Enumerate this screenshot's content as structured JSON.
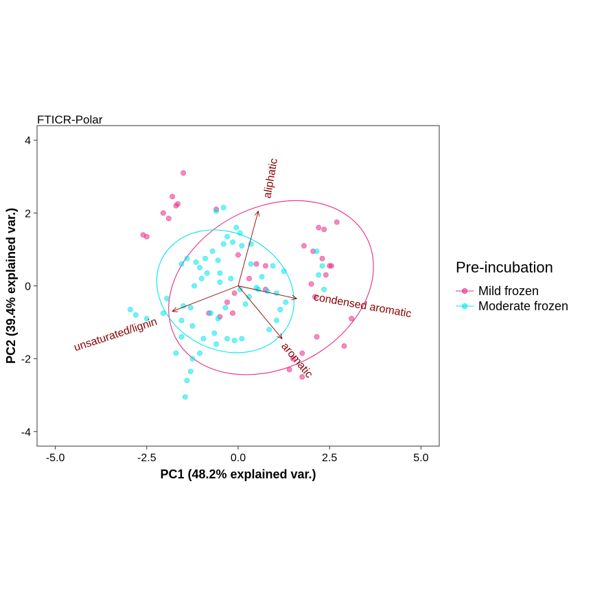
{
  "chart_data": {
    "type": "scatter",
    "title": "FTICR-Polar",
    "xlabel": "PC1 (48.2% explained var.)",
    "ylabel": "PC2 (39.4% explained var.)",
    "xlim": [
      -5.5,
      5.5
    ],
    "ylim": [
      -4.4,
      4.4
    ],
    "xticks": [
      -5.0,
      -2.5,
      0.0,
      2.5,
      5.0
    ],
    "xtick_labels": [
      "-5.0",
      "-2.5",
      "0.0",
      "2.5",
      "5.0"
    ],
    "yticks": [
      -4,
      -2,
      0,
      2,
      4
    ],
    "ytick_labels": [
      "-4",
      "-2",
      "0",
      "2",
      "4"
    ],
    "grid": false,
    "legend": {
      "title": "Pre-incubation",
      "position": "right"
    },
    "series": [
      {
        "name": "Mild frozen",
        "color": "#e7298a",
        "points": [
          [
            -1.5,
            3.1
          ],
          [
            -1.8,
            2.45
          ],
          [
            -1.7,
            2.2
          ],
          [
            -1.65,
            2.25
          ],
          [
            -2.05,
            2.0
          ],
          [
            -1.9,
            1.85
          ],
          [
            -2.6,
            1.4
          ],
          [
            -2.5,
            1.35
          ],
          [
            -0.6,
            2.1
          ],
          [
            2.2,
            1.6
          ],
          [
            2.35,
            1.55
          ],
          [
            2.7,
            1.75
          ],
          [
            1.8,
            1.1
          ],
          [
            2.05,
            0.95
          ],
          [
            2.3,
            0.75
          ],
          [
            2.5,
            0.55
          ],
          [
            2.55,
            0.55
          ],
          [
            2.4,
            0.3
          ],
          [
            2.0,
            0.05
          ],
          [
            2.1,
            -0.3
          ],
          [
            3.1,
            -0.9
          ],
          [
            2.15,
            -1.4
          ],
          [
            2.9,
            -1.65
          ],
          [
            1.75,
            -1.85
          ],
          [
            1.5,
            -2.0
          ],
          [
            1.4,
            -2.3
          ],
          [
            1.75,
            -2.5
          ],
          [
            0.5,
            0.6
          ],
          [
            0.75,
            0.55
          ],
          [
            0.3,
            0.2
          ],
          [
            0.0,
            0.85
          ],
          [
            -0.1,
            -0.2
          ],
          [
            -0.3,
            -0.45
          ],
          [
            -0.15,
            -0.75
          ],
          [
            -0.5,
            -0.85
          ],
          [
            -0.8,
            -0.75
          ],
          [
            0.75,
            -0.1
          ]
        ]
      },
      {
        "name": "Moderate frozen",
        "color": "#00e5ee",
        "points": [
          [
            -0.6,
            2.05
          ],
          [
            -0.4,
            2.15
          ],
          [
            -0.05,
            1.6
          ],
          [
            0.05,
            1.45
          ],
          [
            -0.15,
            1.2
          ],
          [
            -0.4,
            1.15
          ],
          [
            0.1,
            1.1
          ],
          [
            0.35,
            1.15
          ],
          [
            -1.4,
            0.75
          ],
          [
            -1.15,
            0.65
          ],
          [
            -1.05,
            0.5
          ],
          [
            -0.9,
            0.75
          ],
          [
            -0.7,
            0.95
          ],
          [
            -0.55,
            0.7
          ],
          [
            -0.85,
            0.35
          ],
          [
            -0.5,
            0.35
          ],
          [
            -1.0,
            0.2
          ],
          [
            -1.2,
            0.0
          ],
          [
            0.35,
            0.6
          ],
          [
            0.65,
            0.25
          ],
          [
            0.95,
            0.55
          ],
          [
            1.25,
            0.4
          ],
          [
            0.55,
            -0.1
          ],
          [
            0.8,
            -0.15
          ],
          [
            1.05,
            -0.2
          ],
          [
            1.3,
            -0.45
          ],
          [
            1.15,
            -0.65
          ],
          [
            2.15,
            0.95
          ],
          [
            2.3,
            0.55
          ],
          [
            2.2,
            0.3
          ],
          [
            2.35,
            -0.1
          ],
          [
            -1.95,
            -0.35
          ],
          [
            -2.05,
            -0.75
          ],
          [
            -2.5,
            -0.9
          ],
          [
            -2.95,
            -0.65
          ],
          [
            -2.8,
            -0.8
          ],
          [
            -1.5,
            -0.55
          ],
          [
            -1.3,
            -0.6
          ],
          [
            -1.55,
            -0.95
          ],
          [
            -1.25,
            -1.1
          ],
          [
            -0.75,
            -0.75
          ],
          [
            -0.55,
            -0.9
          ],
          [
            -0.35,
            -0.6
          ],
          [
            0.2,
            -0.5
          ],
          [
            -0.3,
            -1.45
          ],
          [
            -0.65,
            -1.3
          ],
          [
            -0.95,
            -1.45
          ],
          [
            -1.05,
            -1.85
          ],
          [
            -1.25,
            -2.0
          ],
          [
            -1.55,
            -1.4
          ],
          [
            -1.7,
            -1.85
          ],
          [
            -1.3,
            -2.35
          ],
          [
            -1.4,
            -2.6
          ],
          [
            -1.45,
            -3.05
          ],
          [
            -0.1,
            -1.5
          ],
          [
            0.1,
            -1.45
          ],
          [
            -0.6,
            -1.6
          ],
          [
            0.3,
            -0.3
          ],
          [
            0.5,
            -0.05
          ],
          [
            0.05,
            -0.1
          ],
          [
            -0.2,
            0.2
          ],
          [
            -0.5,
            0.1
          ],
          [
            -1.55,
            0.6
          ],
          [
            -0.3,
            1.35
          ],
          [
            1.05,
            -0.95
          ],
          [
            0.85,
            -1.2
          ]
        ]
      }
    ],
    "ellipses": [
      {
        "series": "Mild frozen",
        "color": "#e7298a",
        "cx": 0.9,
        "cy": -0.05,
        "rx": 2.95,
        "ry": 2.2,
        "angle_deg": -28
      },
      {
        "series": "Moderate frozen",
        "color": "#00e5ee",
        "cx": -0.35,
        "cy": -0.15,
        "rx": 1.95,
        "ry": 1.6,
        "angle_deg": 28
      }
    ],
    "loadings": {
      "color": "#8b0000",
      "vectors": [
        {
          "label": "aliphatic",
          "x": 0.55,
          "y": 2.05,
          "label_x": 0.9,
          "label_y": 2.95,
          "label_rotation": -80
        },
        {
          "label": "condensed aromatic",
          "x": 1.6,
          "y": -0.35,
          "label_x": 3.4,
          "label_y": -0.55,
          "label_rotation": 10
        },
        {
          "label": "aromatic",
          "x": 1.2,
          "y": -1.45,
          "label_x": 1.6,
          "label_y": -2.05,
          "label_rotation": 50
        },
        {
          "label": "unsaturated/lignin",
          "x": -1.8,
          "y": -0.7,
          "label_x": -3.35,
          "label_y": -1.35,
          "label_rotation": -18
        }
      ]
    }
  }
}
